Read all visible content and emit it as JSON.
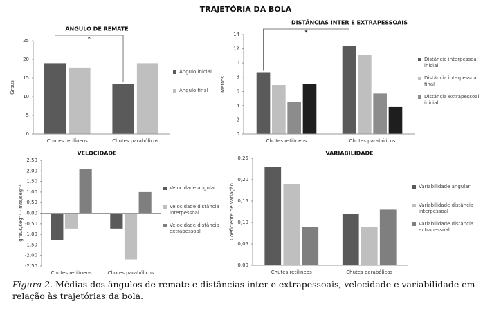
{
  "title": "TRAJETÓRIA DA BOLA",
  "caption": {
    "label": "Figura 2.",
    "text": "Médias dos ângulos de remate e distâncias inter e extrapessoais, velocidade e variabilidade em relação às trajetórias da bola."
  },
  "chart_data": [
    {
      "type": "bar",
      "title": "ÂNGULO DE REMATE",
      "y_label": "Graus",
      "annotation": "*",
      "categories": [
        "Chutes retilíneos",
        "Chutes parabólicos"
      ],
      "series": [
        {
          "name": "Ângulo inicial",
          "color": "#5a5a5a",
          "values": [
            19,
            13.5
          ]
        },
        {
          "name": "Ângulo final",
          "color": "#bfbfbf",
          "values": [
            17.8,
            19
          ]
        }
      ],
      "ylim": [
        0,
        25
      ],
      "yticks": [
        0,
        5,
        10,
        15,
        20,
        25
      ]
    },
    {
      "type": "bar",
      "title": "DISTÂNCIAS INTER E EXTRAPESSOAIS",
      "y_label": "Metros",
      "annotation": "*",
      "categories": [
        "Chutes retilíneos",
        "Chutes parabólicos"
      ],
      "series": [
        {
          "name": "Distância interpessoal inicial",
          "color": "#5a5a5a",
          "values": [
            8.7,
            12.4
          ]
        },
        {
          "name": "Distância interpessoal final",
          "color": "#bfbfbf",
          "values": [
            6.9,
            11.1
          ]
        },
        {
          "name": "Distância extrapessoal inicial",
          "color": "#8c8c8c",
          "values": [
            4.5,
            5.7
          ]
        },
        {
          "name": null,
          "color": "#1e1e1e",
          "values": [
            7.0,
            3.8
          ]
        }
      ],
      "ylim": [
        0,
        14
      ],
      "yticks": [
        0,
        2,
        4,
        6,
        8,
        10,
        12,
        14
      ]
    },
    {
      "type": "bar",
      "title": "VELOCIDADE",
      "y_label": "graus/seg⁻¹ - mts/seg⁻¹",
      "categories": [
        "Chutes retilíneos",
        "Chutes parabólicos"
      ],
      "series": [
        {
          "name": "Velocidade angular",
          "color": "#5a5a5a",
          "values": [
            -1.27,
            -0.73
          ]
        },
        {
          "name": "Velocidade distância interpessoal",
          "color": "#bfbfbf",
          "values": [
            -0.73,
            -2.19
          ]
        },
        {
          "name": "Velocidade distância extrapessoal",
          "color": "#7f7f7f",
          "values": [
            2.09,
            1.0
          ]
        }
      ],
      "ylim": [
        -2.5,
        2.5
      ],
      "yticks": [
        {
          "value": -2.5,
          "label": "-2,50"
        },
        {
          "value": -2,
          "label": "-2,00"
        },
        {
          "value": -1.5,
          "label": "-1,50"
        },
        {
          "value": -1,
          "label": "-1,00"
        },
        {
          "value": -0.5,
          "label": "-0,50"
        },
        {
          "value": 0,
          "label": "0,00"
        },
        {
          "value": 0.5,
          "label": "0,50"
        },
        {
          "value": 1,
          "label": "1,00"
        },
        {
          "value": 1.5,
          "label": "1,50"
        },
        {
          "value": 2,
          "label": "2,00"
        },
        {
          "value": 2.5,
          "label": "2,50"
        }
      ]
    },
    {
      "type": "bar",
      "title": "VARIABILIDADE",
      "y_label": "Coeficiente de variação",
      "categories": [
        "Chutes retilíneos",
        "Chutes parabólicos"
      ],
      "series": [
        {
          "name": "Variabilidade angular",
          "color": "#5a5a5a",
          "values": [
            0.23,
            0.12
          ]
        },
        {
          "name": "Variabilidade distância interpessoal",
          "color": "#bfbfbf",
          "values": [
            0.19,
            0.09
          ]
        },
        {
          "name": "Variabilidade distância extrapessoal",
          "color": "#7f7f7f",
          "values": [
            0.09,
            0.13
          ]
        }
      ],
      "ylim": [
        0,
        0.25
      ],
      "yticks": [
        {
          "value": 0,
          "label": "0,00"
        },
        {
          "value": 0.05,
          "label": "0,05"
        },
        {
          "value": 0.1,
          "label": "0,10"
        },
        {
          "value": 0.15,
          "label": "0,15"
        },
        {
          "value": 0.2,
          "label": "0,20"
        },
        {
          "value": 0.25,
          "label": "0,25"
        }
      ]
    }
  ]
}
